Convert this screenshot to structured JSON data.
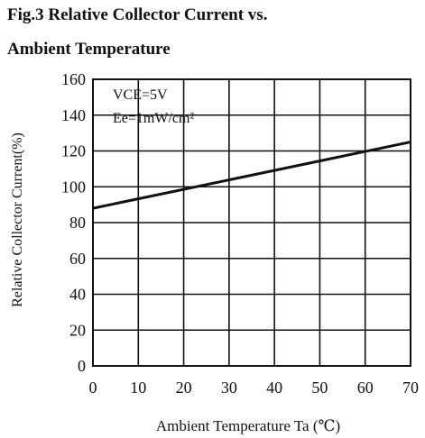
{
  "chart_data": {
    "type": "line",
    "title_line1": "Fig.3 Relative Collector Current vs.",
    "title_line2": "Ambient Temperature",
    "xlabel": "Ambient Temperature Ta (℃)",
    "ylabel": "Relative Collector Current(%)",
    "xlim": [
      0,
      70
    ],
    "ylim": [
      0,
      160
    ],
    "x_ticks": [
      0,
      10,
      20,
      30,
      40,
      50,
      60,
      70
    ],
    "y_ticks": [
      0,
      20,
      40,
      60,
      80,
      100,
      120,
      140,
      160
    ],
    "grid": true,
    "conditions": [
      "VCE=5V",
      "Ee=1mW/cm²"
    ],
    "series": [
      {
        "x": [
          0,
          70
        ],
        "y": [
          88,
          125
        ]
      }
    ]
  }
}
